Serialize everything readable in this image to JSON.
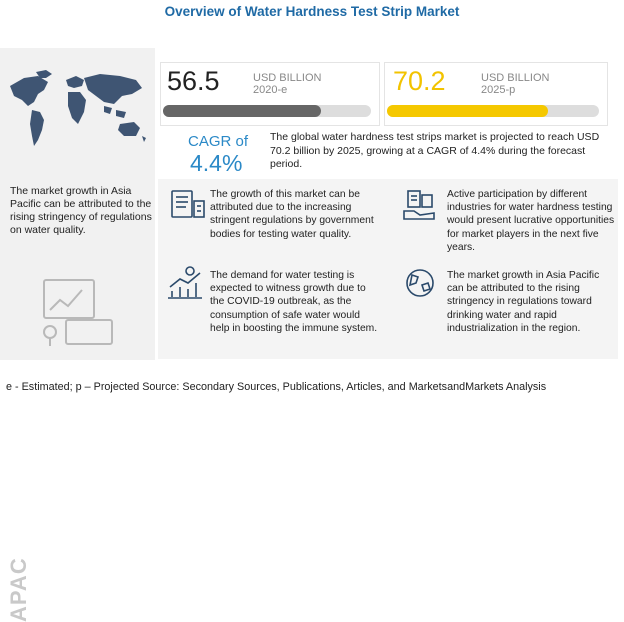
{
  "title": "Overview of Water Hardness Test Strip Market",
  "left_panel": {
    "text": "The market growth in Asia Pacific can be attributed to the rising stringency of regulations on water quality.",
    "region_label": "APAC"
  },
  "stats": {
    "current": {
      "value": "56.5",
      "unit": "USD BILLION",
      "year": "2020-e",
      "bar_fill_fraction": 0.76,
      "color": "#666666"
    },
    "projected": {
      "value": "70.2",
      "unit": "USD BILLION",
      "year": "2025-p",
      "bar_fill_fraction": 0.76,
      "color": "#f5c800"
    }
  },
  "cagr": {
    "label": "CAGR of",
    "value": "4.4%",
    "description": "The global water hardness test strips market is projected to reach USD 70.2 billion by 2025, growing at a CAGR of 4.4% during the forecast period."
  },
  "insights": [
    {
      "icon": "regulation-document-icon",
      "text": "The growth of this market can be attributed due to the increasing stringent regulations by government bodies for testing water quality."
    },
    {
      "icon": "industry-participation-icon",
      "text": "Active participation by different industries for water hardness testing would present lucrative opportunities for market players in the next five years."
    },
    {
      "icon": "growth-chart-icon",
      "text": "The demand for water testing is expected to witness growth due to the COVID-19 outbreak, as the consumption of safe water would help in boosting the immune system."
    },
    {
      "icon": "globe-region-icon",
      "text": "The market growth in Asia Pacific can be attributed to the rising stringency in regulations toward drinking water and rapid industrialization in the region."
    }
  ],
  "footer": "e - Estimated; p – Projected Source: Secondary Sources, Publications, Articles, and MarketsandMarkets Analysis"
}
